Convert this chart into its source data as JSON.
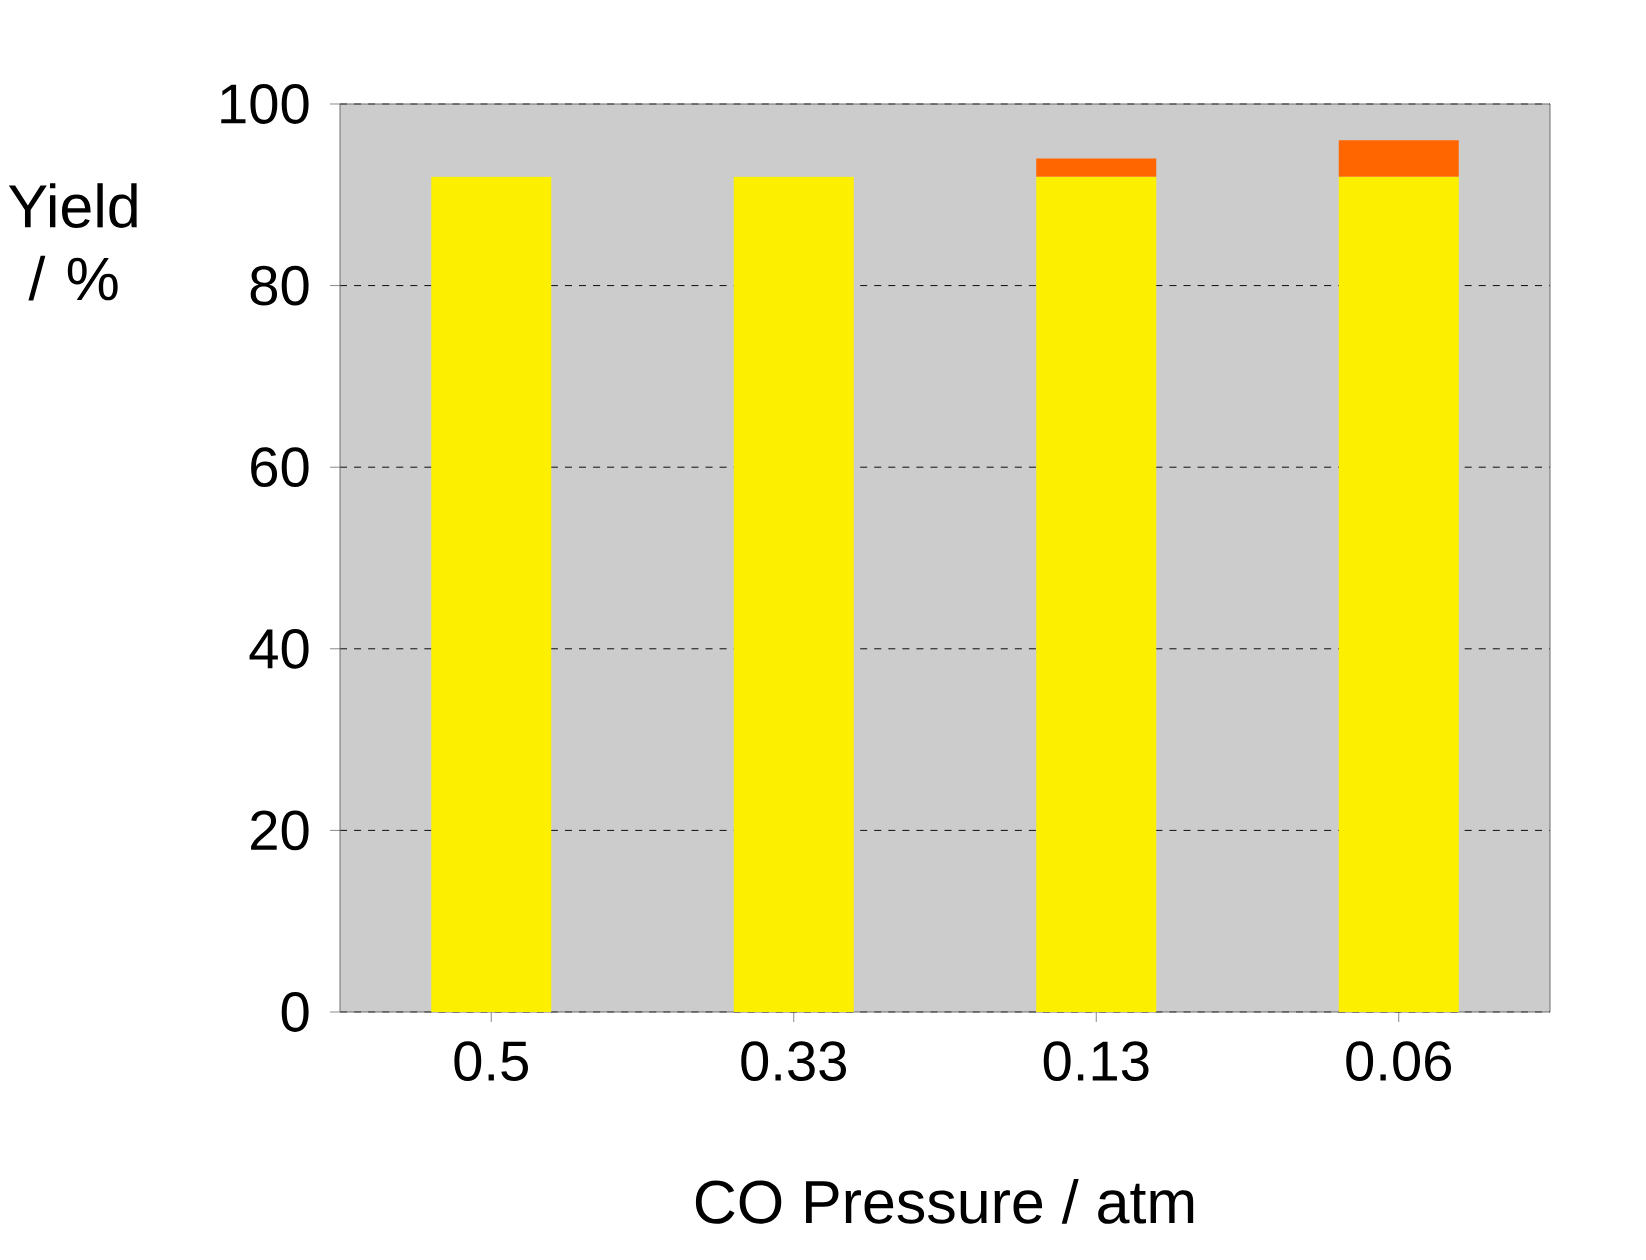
{
  "chart_data": {
    "type": "bar",
    "stacked": true,
    "categories": [
      "0.5",
      "0.33",
      "0.13",
      "0.06"
    ],
    "xlabel": "CO Pressure / atm",
    "ylabel": "Yield / %",
    "series": [
      {
        "color": "#fcf000",
        "values": [
          92,
          92,
          92,
          92
        ]
      },
      {
        "color": "#ff6600",
        "values": [
          0,
          0,
          2,
          4
        ]
      }
    ],
    "ylim": [
      0,
      100
    ],
    "yticks": [
      0,
      20,
      40,
      60,
      80,
      100
    ],
    "grid": "y"
  }
}
